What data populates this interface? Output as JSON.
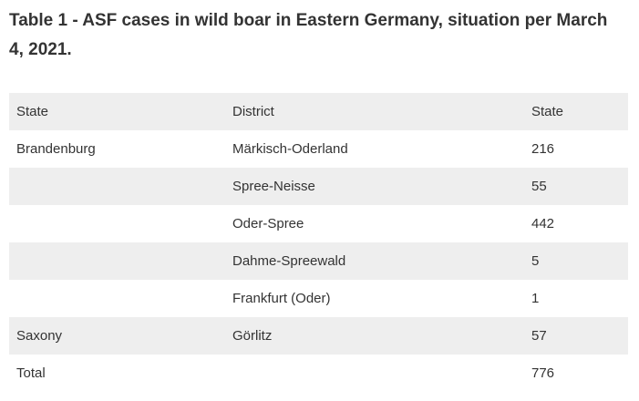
{
  "table": {
    "title": "Table 1 - ASF cases in wild boar in Eastern Germany, situation per March 4, 2021.",
    "headers": [
      "State",
      "District",
      "State"
    ],
    "rows": [
      [
        "Brandenburg",
        "Märkisch-Oderland",
        "216"
      ],
      [
        "",
        "Spree-Neisse",
        "55"
      ],
      [
        "",
        "Oder-Spree",
        "442"
      ],
      [
        "",
        "Dahme-Spreewald",
        "5"
      ],
      [
        "",
        "Frankfurt (Oder)",
        "1"
      ],
      [
        "Saxony",
        "Görlitz",
        "57"
      ],
      [
        "Total",
        "",
        "776"
      ]
    ]
  }
}
